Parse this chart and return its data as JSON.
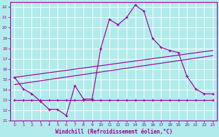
{
  "xlabel": "Windchill (Refroidissement éolien,°C)",
  "background_color": "#b2ebeb",
  "grid_color": "#ffffff",
  "line_color": "#990099",
  "xlim": [
    -0.5,
    23.5
  ],
  "ylim": [
    11,
    22.5
  ],
  "x_ticks": [
    0,
    1,
    2,
    3,
    4,
    5,
    6,
    7,
    8,
    9,
    10,
    11,
    12,
    13,
    14,
    15,
    16,
    17,
    18,
    19,
    20,
    21,
    22,
    23
  ],
  "y_ticks": [
    11,
    12,
    13,
    14,
    15,
    16,
    17,
    18,
    19,
    20,
    21,
    22
  ],
  "hours": [
    0,
    1,
    2,
    3,
    4,
    5,
    6,
    7,
    8,
    9,
    10,
    11,
    12,
    13,
    14,
    15,
    16,
    17,
    18,
    19,
    20,
    21,
    22,
    23
  ],
  "line_main": [
    15.2,
    14.1,
    13.6,
    12.9,
    12.1,
    12.1,
    11.5,
    14.4,
    13.1,
    13.1,
    18.0,
    20.8,
    20.3,
    21.0,
    22.2,
    21.6,
    19.0,
    18.1,
    17.8,
    17.6,
    15.3,
    14.1,
    13.6,
    13.6
  ],
  "line_flat": [
    13.0,
    13.0,
    13.0,
    13.0,
    13.0,
    13.0,
    13.0,
    13.0,
    13.0,
    13.0,
    13.0,
    13.0,
    13.0,
    13.0,
    13.0,
    13.0,
    13.0,
    13.0,
    13.0,
    13.0,
    13.0,
    13.0,
    13.0,
    13.0
  ],
  "trend1_x": [
    0,
    23
  ],
  "trend1_y": [
    15.2,
    17.8
  ],
  "trend2_x": [
    0,
    23
  ],
  "trend2_y": [
    14.5,
    17.3
  ]
}
